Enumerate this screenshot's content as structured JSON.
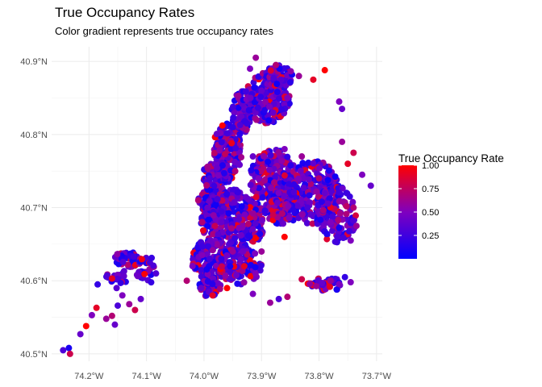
{
  "header": {
    "title": "True Occupancy Rates",
    "subtitle": "Color gradient represents true occupancy rates"
  },
  "chart_data": {
    "type": "scatter",
    "title": "True Occupancy Rates",
    "subtitle": "Color gradient represents true occupancy rates",
    "xlabel": "",
    "ylabel": "",
    "xlim": [
      -74.265,
      -73.69
    ],
    "ylim": [
      40.49,
      40.92
    ],
    "x_ticks": [
      {
        "value": -74.2,
        "label": "74.2°W"
      },
      {
        "value": -74.1,
        "label": "74.1°W"
      },
      {
        "value": -74.0,
        "label": "74.0°W"
      },
      {
        "value": -73.9,
        "label": "73.9°W"
      },
      {
        "value": -73.8,
        "label": "73.8°W"
      },
      {
        "value": -73.7,
        "label": "73.7°W"
      }
    ],
    "y_ticks": [
      {
        "value": 40.5,
        "label": "40.5°N"
      },
      {
        "value": 40.6,
        "label": "40.6°N"
      },
      {
        "value": 40.7,
        "label": "40.7°N"
      },
      {
        "value": 40.8,
        "label": "40.8°N"
      },
      {
        "value": 40.9,
        "label": "40.9°N"
      }
    ],
    "grid": true,
    "legend": {
      "title": "True Occupancy Rate",
      "position": "right",
      "breaks": [
        {
          "value": 0.25,
          "label": "0.25"
        },
        {
          "value": 0.5,
          "label": "0.50"
        },
        {
          "value": 0.75,
          "label": "0.75"
        },
        {
          "value": 1.0,
          "label": "1.00"
        }
      ],
      "range": [
        0.0,
        1.0
      ],
      "low_color": "#0000ff",
      "high_color": "#ff0000"
    },
    "points": [
      [
        -74.245,
        40.505,
        0.3
      ],
      [
        -74.235,
        40.508,
        0.1
      ],
      [
        -74.233,
        40.5,
        0.8
      ],
      [
        -74.215,
        40.527,
        0.4
      ],
      [
        -74.205,
        40.538,
        1.0
      ],
      [
        -74.195,
        40.553,
        0.5
      ],
      [
        -74.187,
        40.563,
        0.9
      ],
      [
        -74.185,
        40.595,
        0.2
      ],
      [
        -74.17,
        40.548,
        0.6
      ],
      [
        -74.16,
        40.552,
        0.7
      ],
      [
        -74.155,
        40.54,
        0.4
      ],
      [
        -74.15,
        40.566,
        0.3
      ],
      [
        -74.142,
        40.58,
        0.5
      ],
      [
        -74.13,
        40.568,
        0.6
      ],
      [
        -74.12,
        40.56,
        0.8
      ],
      [
        -74.11,
        40.575,
        0.4
      ],
      [
        -74.145,
        40.597,
        0.2
      ],
      [
        -74.16,
        40.603,
        0.9
      ],
      [
        -74.152,
        40.59,
        0.35
      ],
      [
        -73.985,
        40.58,
        0.9
      ],
      [
        -73.96,
        40.59,
        1.0
      ],
      [
        -73.915,
        40.582,
        0.5
      ],
      [
        -73.885,
        40.57,
        0.6
      ],
      [
        -73.87,
        40.575,
        0.3
      ],
      [
        -73.855,
        40.578,
        0.7
      ],
      [
        -73.83,
        40.602,
        0.8
      ],
      [
        -73.795,
        40.597,
        0.4
      ],
      [
        -73.78,
        40.6,
        0.6
      ],
      [
        -73.755,
        40.605,
        0.2
      ],
      [
        -73.745,
        40.598,
        0.5
      ],
      [
        -73.79,
        40.888,
        1.0
      ],
      [
        -73.81,
        40.875,
        0.9
      ],
      [
        -73.875,
        40.895,
        0.7
      ],
      [
        -73.835,
        40.88,
        0.6
      ],
      [
        -73.76,
        40.835,
        0.4
      ],
      [
        -73.765,
        40.845,
        0.5
      ],
      [
        -73.76,
        40.79,
        0.6
      ],
      [
        -73.74,
        40.775,
        0.8
      ],
      [
        -73.71,
        40.73,
        0.4
      ],
      [
        -73.725,
        40.745,
        0.5
      ],
      [
        -73.75,
        40.76,
        0.9
      ],
      [
        -73.74,
        40.7,
        0.7
      ],
      [
        -73.745,
        40.655,
        0.5
      ],
      [
        -73.735,
        40.675,
        0.6
      ],
      [
        -73.86,
        40.66,
        1.0
      ],
      [
        -73.88,
        40.69,
        0.8
      ],
      [
        -73.82,
        40.7,
        0.3
      ],
      [
        -73.9,
        40.86,
        0.4
      ],
      [
        -73.92,
        40.89,
        0.5
      ],
      [
        -73.91,
        40.905,
        0.6
      ],
      [
        -73.95,
        40.81,
        0.2
      ],
      [
        -73.99,
        40.74,
        0.3
      ],
      [
        -74.01,
        40.71,
        0.7
      ],
      [
        -73.97,
        40.68,
        0.4
      ],
      [
        -73.95,
        40.64,
        0.6
      ],
      [
        -73.99,
        40.63,
        0.3
      ],
      [
        -74.02,
        40.62,
        0.5
      ],
      [
        -74.03,
        40.6,
        0.7
      ],
      [
        -74.005,
        40.59,
        0.4
      ],
      [
        -73.93,
        40.62,
        0.9
      ],
      [
        -73.9,
        40.64,
        0.6
      ],
      [
        -73.87,
        40.72,
        0.5
      ],
      [
        -73.8,
        40.74,
        0.7
      ],
      [
        -73.78,
        40.68,
        0.5
      ],
      [
        -73.79,
        40.72,
        0.4
      ],
      [
        -73.83,
        40.77,
        0.6
      ],
      [
        -73.86,
        40.78,
        0.5
      ],
      [
        -73.88,
        40.83,
        0.4
      ],
      [
        -73.855,
        40.85,
        0.5
      ],
      [
        -73.94,
        40.76,
        0.4
      ],
      [
        -73.905,
        40.74,
        0.5
      ],
      [
        -73.915,
        40.77,
        0.4
      ]
    ]
  }
}
